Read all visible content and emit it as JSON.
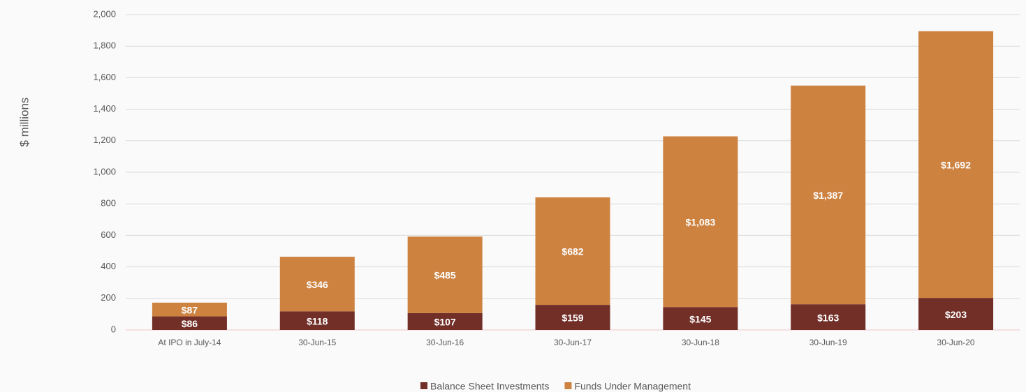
{
  "chart_data": {
    "type": "bar",
    "stacked": true,
    "y_label": "$ millions",
    "categories": [
      "At IPO in July-14",
      "30-Jun-15",
      "30-Jun-16",
      "30-Jun-17",
      "30-Jun-18",
      "30-Jun-19",
      "30-Jun-20"
    ],
    "series": [
      {
        "name": "Balance Sheet Investments",
        "color": "#722f28",
        "values": [
          86,
          118,
          107,
          159,
          145,
          163,
          203
        ],
        "value_labels": [
          "$86",
          "$118",
          "$107",
          "$159",
          "$145",
          "$163",
          "$203"
        ]
      },
      {
        "name": "Funds Under Management",
        "color": "#cd8240",
        "values": [
          87,
          346,
          485,
          682,
          1083,
          1387,
          1692
        ],
        "value_labels": [
          "$87",
          "$346",
          "$485",
          "$682",
          "$1,083",
          "$1,387",
          "$1,692"
        ]
      }
    ],
    "ylim": [
      0,
      2000
    ],
    "yticks": [
      0,
      200,
      400,
      600,
      800,
      {
        "value": 1000,
        "label": "1,000"
      },
      {
        "value": 1200,
        "label": "1,200"
      },
      {
        "value": 1400,
        "label": "1,400"
      },
      {
        "value": 1600,
        "label": "1,600"
      },
      {
        "value": 1800,
        "label": "1,800"
      },
      {
        "value": 2000,
        "label": "2,000"
      }
    ],
    "grid": true,
    "legend": "bottom"
  }
}
